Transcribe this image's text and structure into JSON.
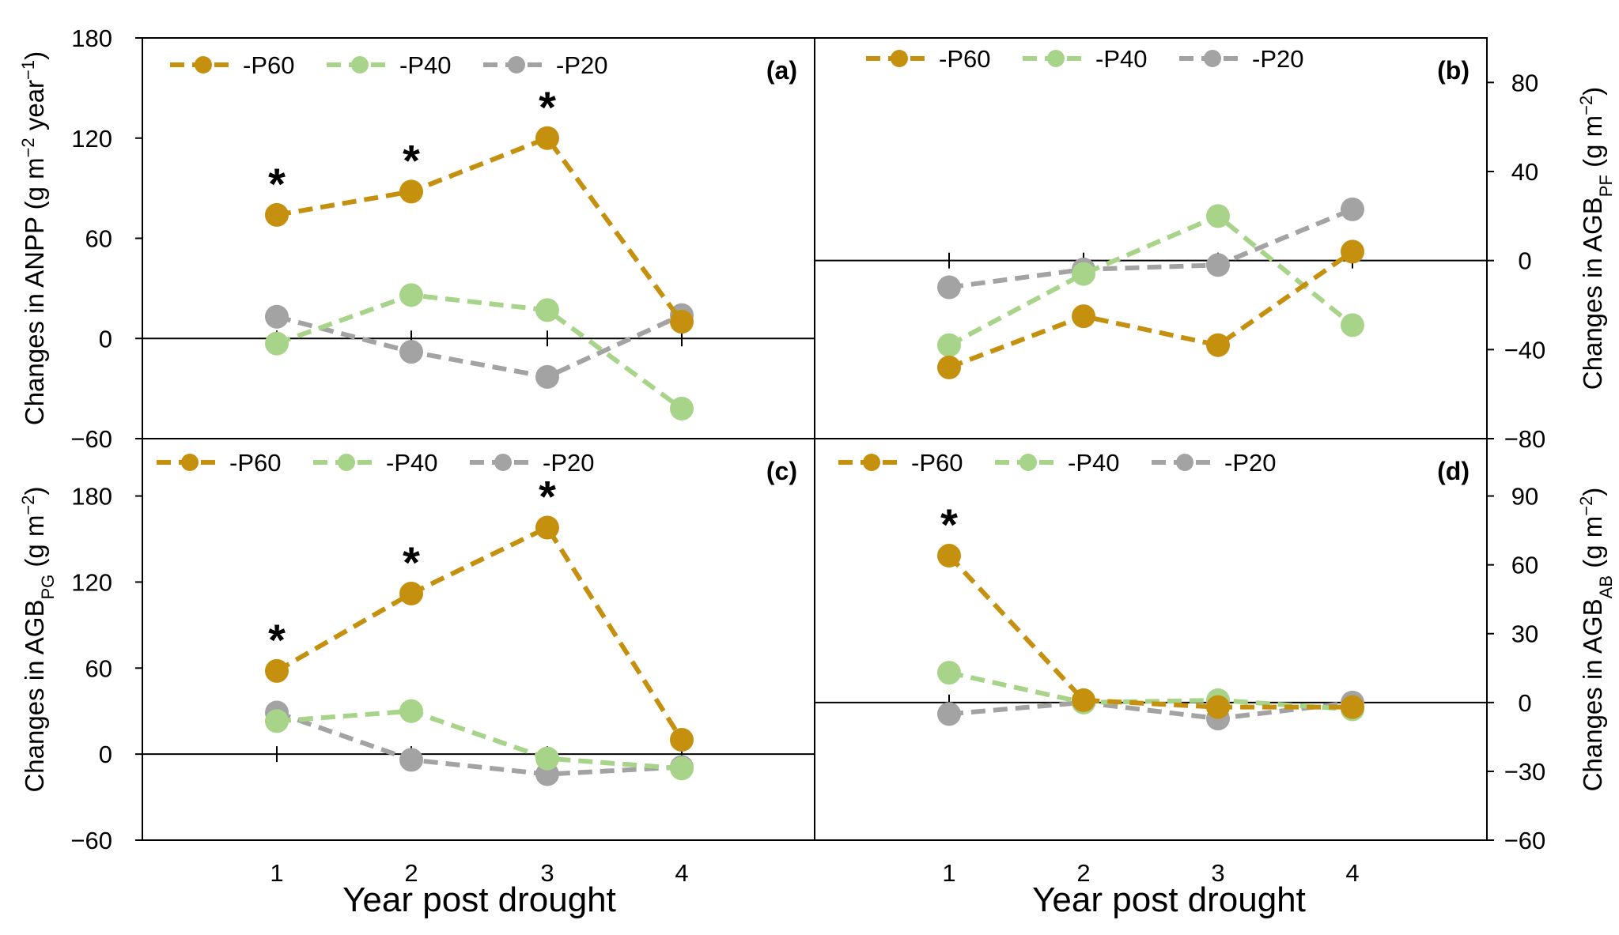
{
  "colors": {
    "P60": "#c4900e",
    "P40": "#a8d48a",
    "P20": "#a3a3a3",
    "axis": "#000000"
  },
  "x_title": "Year post drought",
  "chart_data": [
    {
      "id": "a",
      "type": "line",
      "panel_label": "(a)",
      "ylabel": {
        "main": "Changes in ANPP (g m",
        "sup1": "−2",
        "mid": " year",
        "sup2": "−1",
        "end": ")"
      },
      "ylim": [
        -60,
        180
      ],
      "yticks": [
        -60,
        0,
        60,
        120,
        180
      ],
      "ytick_labels": [
        "−60",
        "0",
        "60",
        "120",
        "180"
      ],
      "y_axis_side": "left",
      "x": [
        1,
        2,
        3,
        4
      ],
      "x_tick_labels": [],
      "series": [
        {
          "name": "-P60",
          "key": "P60",
          "values": [
            74,
            88,
            120,
            10
          ]
        },
        {
          "name": "-P40",
          "key": "P40",
          "values": [
            -3,
            26,
            17,
            -42
          ]
        },
        {
          "name": "-P20",
          "key": "P20",
          "values": [
            13,
            -8,
            -23,
            14
          ]
        }
      ],
      "significance": [
        {
          "x": 1,
          "y": 74,
          "label": "*"
        },
        {
          "x": 2,
          "y": 88,
          "label": "*"
        },
        {
          "x": 3,
          "y": 120,
          "label": "*"
        }
      ],
      "legend_position": "top-left"
    },
    {
      "id": "b",
      "type": "line",
      "panel_label": "(b)",
      "ylabel": {
        "main": "Changes in AGB",
        "sub": "PF",
        "rest": " (g m",
        "sup1": "−2",
        "end": ")"
      },
      "ylim": [
        -80,
        100
      ],
      "yticks": [
        -80,
        -40,
        0,
        40,
        80
      ],
      "ytick_labels": [
        "−80",
        "−40",
        "0",
        "40",
        "80"
      ],
      "y_axis_side": "right",
      "x": [
        1,
        2,
        3,
        4
      ],
      "x_tick_labels": [],
      "series": [
        {
          "name": "-P60",
          "key": "P60",
          "values": [
            -48,
            -25,
            -38,
            4
          ]
        },
        {
          "name": "-P40",
          "key": "P40",
          "values": [
            -38,
            -6,
            20,
            -29
          ]
        },
        {
          "name": "-P20",
          "key": "P20",
          "values": [
            -12,
            -4,
            -2,
            23
          ]
        }
      ],
      "significance": [],
      "legend_position": "top-left"
    },
    {
      "id": "c",
      "type": "line",
      "panel_label": "(c)",
      "ylabel": {
        "main": "Changes in AGB",
        "sub": "PG",
        "rest": " (g m",
        "sup1": "−2",
        "end": ")"
      },
      "ylim": [
        -60,
        220
      ],
      "yticks": [
        -60,
        0,
        60,
        120,
        180
      ],
      "ytick_labels": [
        "−60",
        "0",
        "60",
        "120",
        "180"
      ],
      "y_axis_side": "left",
      "x": [
        1,
        2,
        3,
        4
      ],
      "x_tick_labels": [
        "1",
        "2",
        "3",
        "4"
      ],
      "series": [
        {
          "name": "-P60",
          "key": "P60",
          "values": [
            58,
            112,
            158,
            10
          ]
        },
        {
          "name": "-P40",
          "key": "P40",
          "values": [
            23,
            30,
            -3,
            -10
          ]
        },
        {
          "name": "-P20",
          "key": "P20",
          "values": [
            29,
            -4,
            -14,
            -9
          ]
        }
      ],
      "significance": [
        {
          "x": 1,
          "y": 58,
          "label": "*"
        },
        {
          "x": 2,
          "y": 112,
          "label": "*"
        },
        {
          "x": 3,
          "y": 158,
          "label": "*"
        }
      ],
      "legend_position": "top-left"
    },
    {
      "id": "d",
      "type": "line",
      "panel_label": "(d)",
      "ylabel": {
        "main": "Changes in AGB",
        "sub": "AB",
        "rest": " (g m",
        "sup1": "−2",
        "end": ")"
      },
      "ylim": [
        -60,
        115
      ],
      "yticks": [
        -60,
        -30,
        0,
        30,
        60,
        90
      ],
      "ytick_labels": [
        "−60",
        "−30",
        "0",
        "30",
        "60",
        "90"
      ],
      "y_axis_side": "right",
      "x": [
        1,
        2,
        3,
        4
      ],
      "x_tick_labels": [
        "1",
        "2",
        "3",
        "4"
      ],
      "series": [
        {
          "name": "-P60",
          "key": "P60",
          "values": [
            64,
            1,
            -2,
            -2
          ]
        },
        {
          "name": "-P40",
          "key": "P40",
          "values": [
            13,
            0,
            1,
            -3
          ]
        },
        {
          "name": "-P20",
          "key": "P20",
          "values": [
            -5,
            0,
            -7,
            0
          ]
        }
      ],
      "significance": [
        {
          "x": 1,
          "y": 64,
          "label": "*"
        }
      ],
      "legend_position": "top-left"
    }
  ]
}
